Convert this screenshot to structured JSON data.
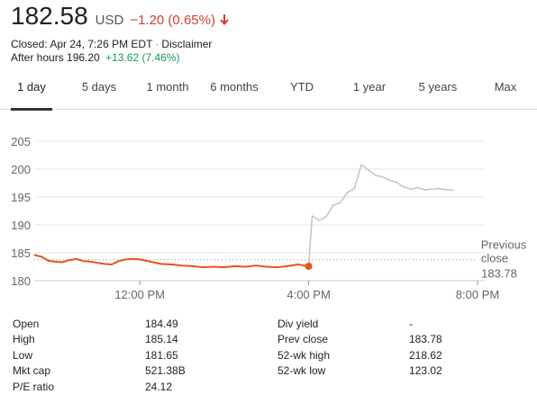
{
  "quote": {
    "price": "182.58",
    "currency": "USD",
    "change": "−1.20 (0.65%)",
    "direction_icon": "arrow-down-icon",
    "change_color": "#d23f31",
    "closed_text": "Closed: Apr 24, 7:26 PM EDT",
    "disclaimer": "Disclaimer",
    "after_hours_label": "After hours 196.20",
    "after_hours_change": "+13.62 (7.46%)",
    "after_hours_color": "#0f9d58"
  },
  "tabs": [
    {
      "label": "1 day",
      "active": true
    },
    {
      "label": "5 days",
      "active": false
    },
    {
      "label": "1 month",
      "active": false
    },
    {
      "label": "6 months",
      "active": false
    },
    {
      "label": "YTD",
      "active": false
    },
    {
      "label": "1 year",
      "active": false
    },
    {
      "label": "5 years",
      "active": false
    },
    {
      "label": "Max",
      "active": false
    }
  ],
  "chart_data": {
    "type": "line",
    "xlabel": "",
    "ylabel": "",
    "grid": true,
    "ylim": [
      180,
      205
    ],
    "yticks": [
      180,
      185,
      190,
      195,
      200,
      205
    ],
    "xlim": [
      "9:30 AM",
      "8:00 PM"
    ],
    "xticks": [
      "12:00 PM",
      "4:00 PM",
      "8:00 PM"
    ],
    "previous_close": {
      "value": 183.78,
      "label_line1": "Previous",
      "label_line2": "close",
      "label_value": "183.78"
    },
    "colors": {
      "regular": "#e8531f",
      "after_hours": "#c6c6c6",
      "grid": "#e6e6e6"
    },
    "series": [
      {
        "session": "regular",
        "x": [
          "9:30 AM",
          "9:40 AM",
          "9:50 AM",
          "10:00 AM",
          "10:10 AM",
          "10:20 AM",
          "10:30 AM",
          "10:40 AM",
          "10:50 AM",
          "11:00 AM",
          "11:10 AM",
          "11:20 AM",
          "11:30 AM",
          "11:40 AM",
          "11:50 AM",
          "12:00 PM",
          "12:15 PM",
          "12:30 PM",
          "12:45 PM",
          "1:00 PM",
          "1:15 PM",
          "1:30 PM",
          "1:45 PM",
          "2:00 PM",
          "2:15 PM",
          "2:30 PM",
          "2:45 PM",
          "3:00 PM",
          "3:15 PM",
          "3:30 PM",
          "3:45 PM",
          "4:00 PM"
        ],
        "values": [
          184.6,
          184.3,
          183.6,
          183.4,
          183.3,
          183.7,
          183.9,
          183.5,
          183.4,
          183.2,
          183.0,
          182.9,
          183.5,
          183.8,
          183.9,
          183.8,
          183.4,
          183.0,
          182.9,
          182.7,
          182.6,
          182.4,
          182.5,
          182.4,
          182.6,
          182.5,
          182.7,
          182.5,
          182.4,
          182.6,
          182.9,
          182.58
        ]
      },
      {
        "session": "after_hours",
        "x": [
          "4:00 PM",
          "4:05 PM",
          "4:15 PM",
          "4:25 PM",
          "4:35 PM",
          "4:45 PM",
          "4:55 PM",
          "5:05 PM",
          "5:15 PM",
          "5:25 PM",
          "5:35 PM",
          "5:45 PM",
          "5:55 PM",
          "6:05 PM",
          "6:15 PM",
          "6:25 PM",
          "6:35 PM",
          "6:45 PM",
          "6:55 PM",
          "7:05 PM",
          "7:15 PM",
          "7:26 PM"
        ],
        "values": [
          182.58,
          191.6,
          190.8,
          191.5,
          193.5,
          194.0,
          195.8,
          196.5,
          200.8,
          199.8,
          198.9,
          198.6,
          198.0,
          197.6,
          196.8,
          196.4,
          196.7,
          196.3,
          196.4,
          196.5,
          196.3,
          196.2
        ]
      }
    ]
  },
  "stats": {
    "left": [
      {
        "label": "Open",
        "value": "184.49"
      },
      {
        "label": "High",
        "value": "185.14"
      },
      {
        "label": "Low",
        "value": "181.65"
      },
      {
        "label": "Mkt cap",
        "value": "521.38B"
      },
      {
        "label": "P/E ratio",
        "value": "24.12"
      }
    ],
    "right": [
      {
        "label": "Div yield",
        "value": "-"
      },
      {
        "label": "Prev close",
        "value": "183.78"
      },
      {
        "label": "52-wk high",
        "value": "218.62"
      },
      {
        "label": "52-wk low",
        "value": "123.02"
      }
    ]
  }
}
